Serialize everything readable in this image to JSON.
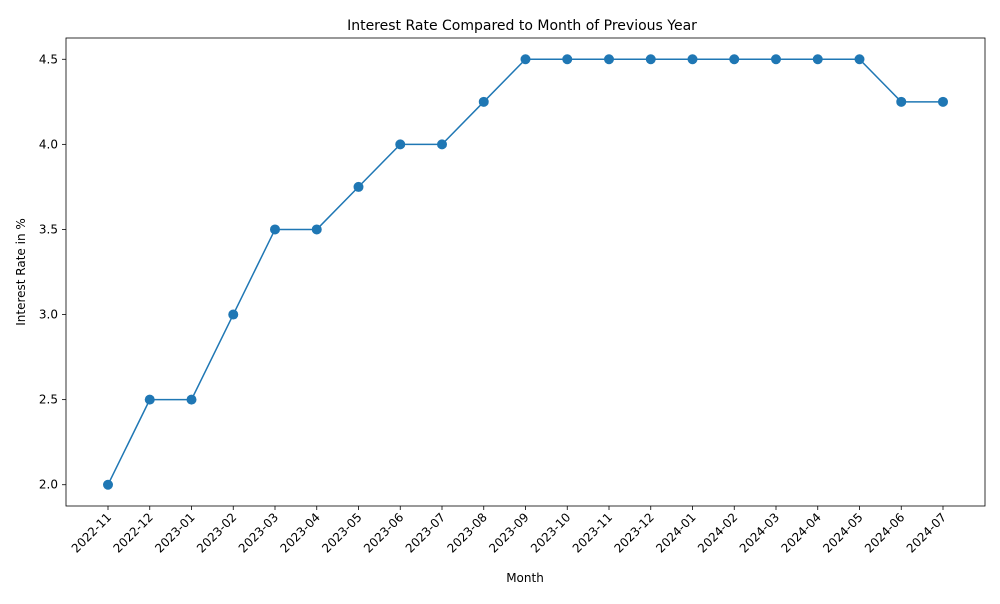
{
  "chart_data": {
    "type": "line",
    "title": "Interest Rate Compared to Month of Previous Year",
    "xlabel": "Month",
    "ylabel": "Interest Rate in %",
    "categories": [
      "2022-11",
      "2022-12",
      "2023-01",
      "2023-02",
      "2023-03",
      "2023-04",
      "2023-05",
      "2023-06",
      "2023-07",
      "2023-08",
      "2023-09",
      "2023-10",
      "2023-11",
      "2023-12",
      "2024-01",
      "2024-02",
      "2024-03",
      "2024-04",
      "2024-05",
      "2024-06",
      "2024-07"
    ],
    "values": [
      2.0,
      2.5,
      2.5,
      3.0,
      3.5,
      3.5,
      3.75,
      4.0,
      4.0,
      4.25,
      4.5,
      4.5,
      4.5,
      4.5,
      4.5,
      4.5,
      4.5,
      4.5,
      4.5,
      4.25,
      4.25
    ],
    "yticks": [
      "2.0",
      "2.5",
      "3.0",
      "3.5",
      "4.0",
      "4.5"
    ],
    "ylim": [
      1.875,
      4.625
    ],
    "grid": false,
    "line_color": "#1f77b4",
    "marker": "circle"
  }
}
